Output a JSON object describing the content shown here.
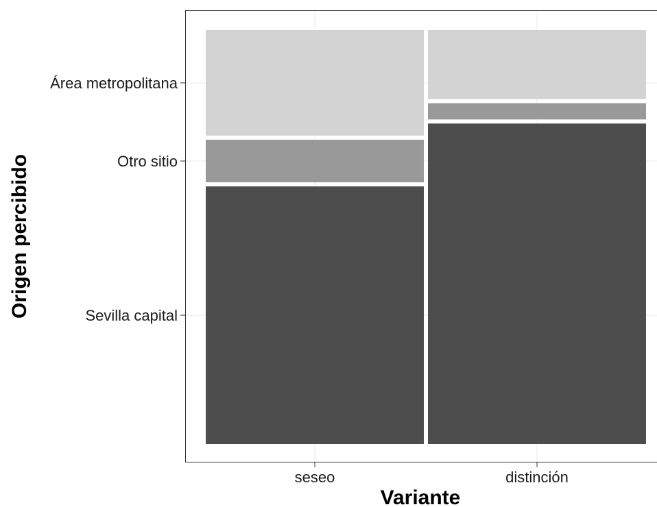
{
  "chart_data": {
    "type": "mosaic",
    "title": "",
    "xlabel": "Variante",
    "ylabel": "Origen percibido",
    "categories": [
      "seseo",
      "distinción"
    ],
    "column_widths": [
      0.5,
      0.5
    ],
    "series": [
      {
        "name": "Sevilla capital",
        "values": [
          0.635,
          0.79
        ],
        "color": "#4d4d4d"
      },
      {
        "name": "Otro sitio",
        "values": [
          0.105,
          0.04
        ],
        "color": "#999999"
      },
      {
        "name": "Área metropolitana",
        "values": [
          0.26,
          0.17
        ],
        "color": "#d3d3d3"
      }
    ],
    "y_tick_labels": [
      "Sevilla capital",
      "Otro sitio",
      "Área metropolitana"
    ],
    "grid": true,
    "legend": "none"
  }
}
